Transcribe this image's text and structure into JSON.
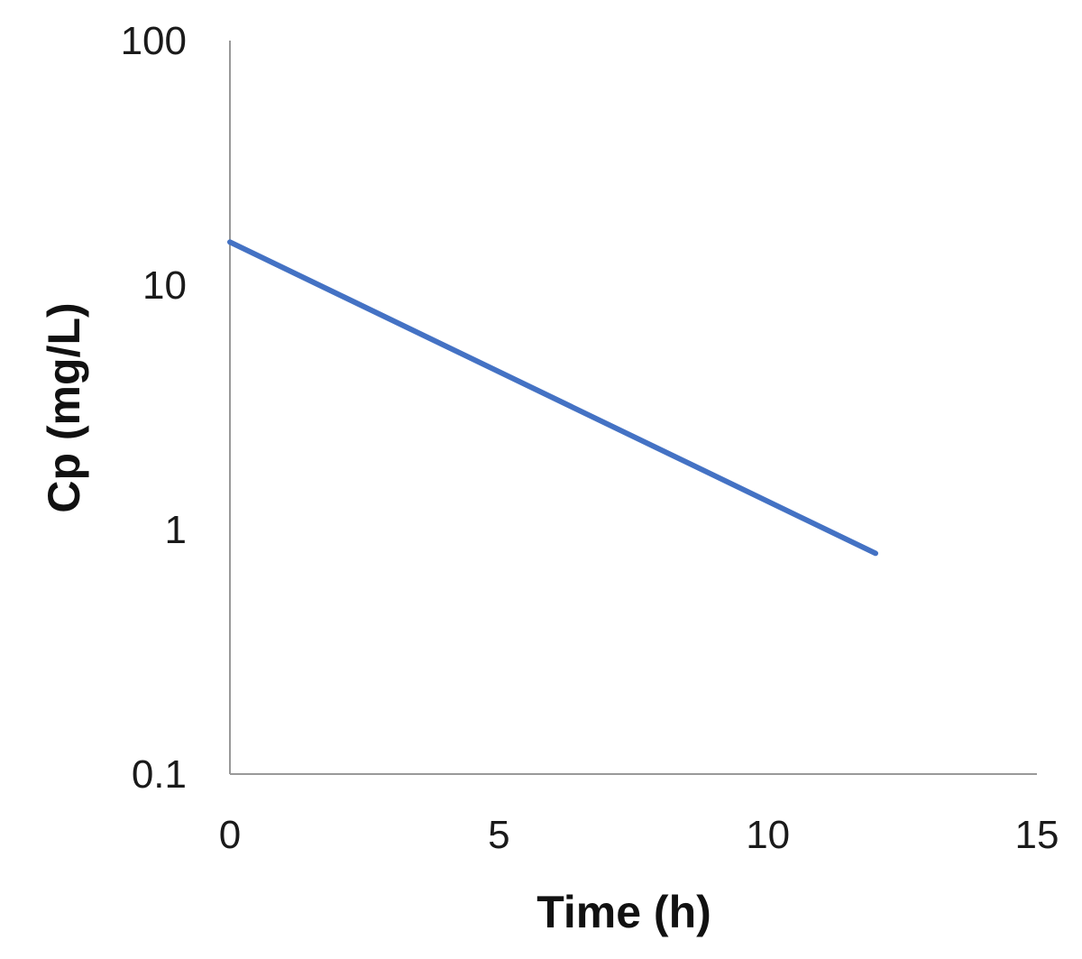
{
  "chart_data": {
    "type": "line",
    "title": "",
    "xlabel": "Time (h)",
    "ylabel": "Cp (mg/L)",
    "xlim": [
      0,
      15
    ],
    "ylim": [
      0.1,
      100
    ],
    "yscale": "log",
    "grid": false,
    "x_ticks": [
      0,
      5,
      10,
      15
    ],
    "x_tick_labels": [
      "0",
      "5",
      "10",
      "15"
    ],
    "y_ticks": [
      0.1,
      1,
      10,
      100
    ],
    "y_tick_labels": [
      "0.1",
      "1",
      "10",
      "100"
    ],
    "series": [
      {
        "name": "Cp",
        "color": "#4472C4",
        "x": [
          0,
          12
        ],
        "values": [
          15,
          0.8
        ]
      }
    ]
  }
}
